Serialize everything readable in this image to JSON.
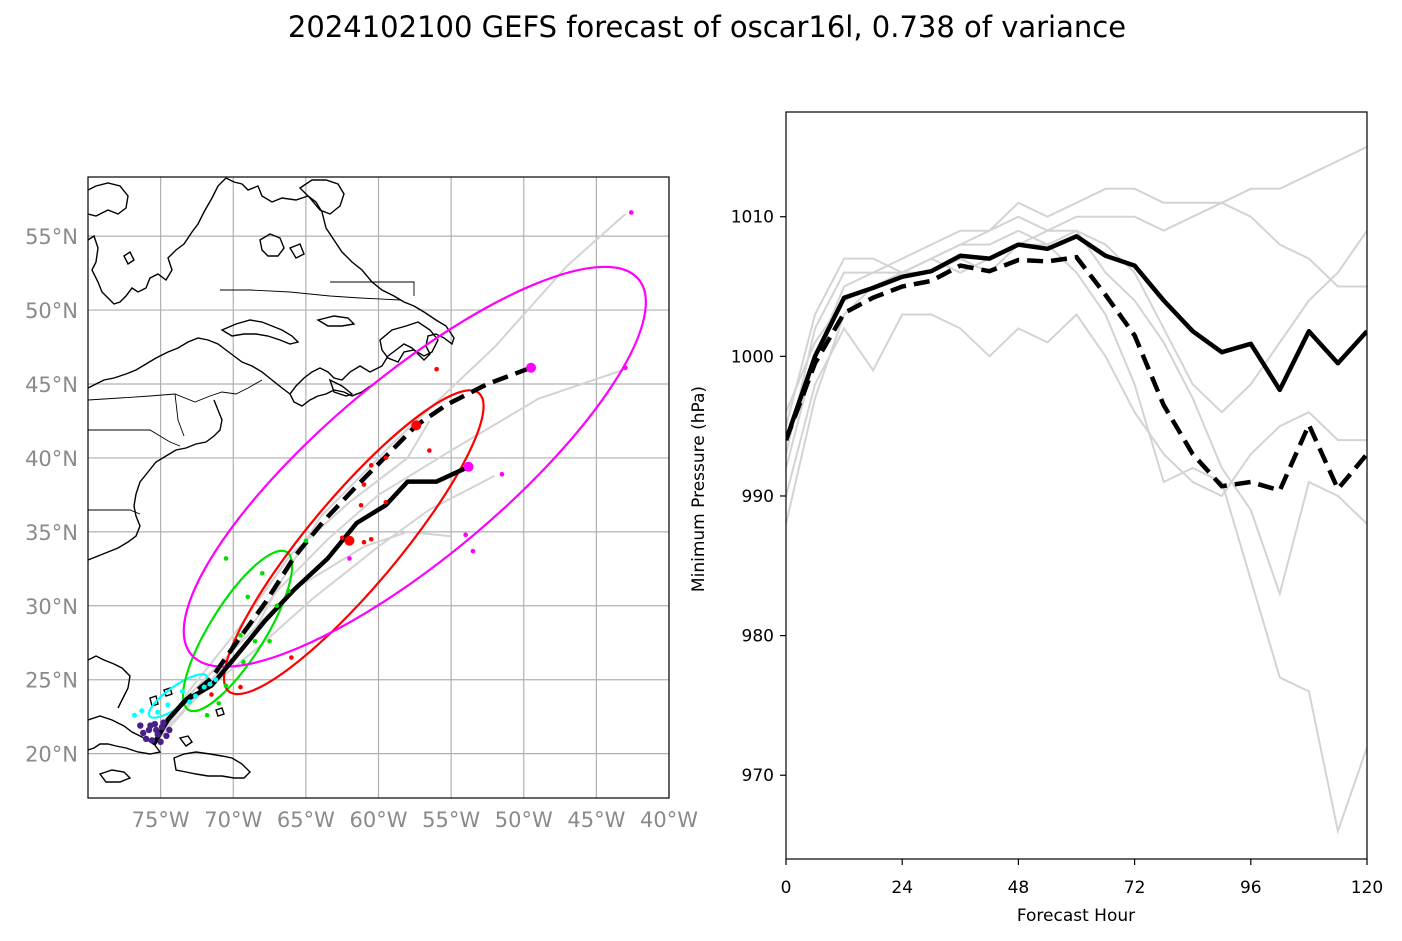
{
  "figure": {
    "title": "2024102100 GEFS forecast of oscar16l, 0.738 of variance"
  },
  "colors": {
    "member": "#d3d3d3",
    "mean": "#000000",
    "control": "#000000",
    "day1": "#00ffff",
    "day2": "#00e000",
    "day3": "#ff0000",
    "day5": "#ff00ff",
    "initial": "#4b1f8a"
  },
  "chart_data": [
    {
      "type": "scatter",
      "panel": "map",
      "xlim": [
        -80,
        -40
      ],
      "ylim": [
        17,
        59
      ],
      "x_ticks": [
        -75,
        -70,
        -65,
        -60,
        -55,
        -50,
        -45,
        -40
      ],
      "x_tick_labels": [
        "75°W",
        "70°W",
        "65°W",
        "60°W",
        "55°W",
        "50°W",
        "45°W",
        "40°W"
      ],
      "y_ticks": [
        20,
        25,
        30,
        35,
        40,
        45,
        50,
        55
      ],
      "y_tick_labels": [
        "20°N",
        "25°N",
        "30°N",
        "35°N",
        "40°N",
        "45°N",
        "50°N",
        "55°N"
      ],
      "grid": true,
      "series": [
        {
          "style": "solid",
          "color": "black",
          "points": [
            [
              -75.5,
              20.6
            ],
            [
              -74.5,
              22.3
            ],
            [
              -73.3,
              23.6
            ],
            [
              -71.5,
              24.6
            ],
            [
              -69.8,
              26.6
            ],
            [
              -67.8,
              29.0
            ],
            [
              -65.8,
              31.1
            ],
            [
              -63.5,
              33.2
            ],
            [
              -61.5,
              35.6
            ],
            [
              -59.5,
              36.8
            ],
            [
              -58.0,
              38.4
            ],
            [
              -56.0,
              38.4
            ],
            [
              -53.8,
              39.4
            ]
          ]
        },
        {
          "style": "dashed",
          "color": "black",
          "points": [
            [
              -75.5,
              20.6
            ],
            [
              -74.5,
              22.3
            ],
            [
              -73.3,
              23.6
            ],
            [
              -71.5,
              25.1
            ],
            [
              -69.8,
              27.5
            ],
            [
              -67.8,
              30.2
            ],
            [
              -65.8,
              33.3
            ],
            [
              -63.8,
              35.7
            ],
            [
              -61.5,
              38.1
            ],
            [
              -59.5,
              40.1
            ],
            [
              -57.4,
              42.2
            ],
            [
              -55.3,
              43.6
            ],
            [
              -52.5,
              45.0
            ],
            [
              -49.5,
              46.1
            ]
          ]
        },
        {
          "style": "member",
          "color": "lightgray",
          "points": [
            [
              -75.5,
              20.6
            ],
            [
              -72.8,
              24.2
            ],
            [
              -70.0,
              27.0
            ],
            [
              -67.0,
              31.0
            ],
            [
              -63.5,
              34.5
            ],
            [
              -60.0,
              37.5
            ],
            [
              -55.0,
              40.5
            ],
            [
              -49.0,
              44.0
            ],
            [
              -43.0,
              46.0
            ]
          ]
        },
        {
          "style": "member",
          "color": "lightgray",
          "points": [
            [
              -75.5,
              20.6
            ],
            [
              -72.5,
              24.0
            ],
            [
              -69.0,
              27.5
            ],
            [
              -66.5,
              32.0
            ],
            [
              -64.0,
              36.0
            ],
            [
              -59.0,
              41.0
            ],
            [
              -52.0,
              47.5
            ],
            [
              -47.0,
              53.0
            ],
            [
              -43.0,
              56.5
            ]
          ]
        },
        {
          "style": "member",
          "color": "lightgray",
          "points": [
            [
              -75.5,
              20.6
            ],
            [
              -73.0,
              24.0
            ],
            [
              -69.5,
              27.5
            ],
            [
              -66.0,
              31.0
            ],
            [
              -61.0,
              34.0
            ],
            [
              -58.0,
              35.0
            ],
            [
              -55.0,
              34.7
            ]
          ]
        },
        {
          "style": "member",
          "color": "lightgray",
          "points": [
            [
              -75.5,
              20.6
            ],
            [
              -72.5,
              23.8
            ],
            [
              -68.5,
              27.0
            ],
            [
              -64.5,
              30.5
            ],
            [
              -60.0,
              34.0
            ],
            [
              -56.5,
              36.5
            ],
            [
              -52.0,
              38.8
            ]
          ]
        },
        {
          "style": "member",
          "color": "lightgray",
          "points": [
            [
              -75.5,
              20.6
            ],
            [
              -73.0,
              24.3
            ],
            [
              -70.0,
              28.0
            ],
            [
              -66.0,
              33.5
            ],
            [
              -62.0,
              37.0
            ],
            [
              -58.0,
              40.0
            ],
            [
              -56.5,
              42.5
            ]
          ]
        }
      ],
      "ellipses": [
        {
          "day": 1,
          "color": "cyan",
          "center": [
            -73.8,
            23.9
          ],
          "semi_major_deg": 2.4,
          "semi_minor_deg": 0.7,
          "angle_deg": 35
        },
        {
          "day": 2,
          "color": "lime",
          "center": [
            -69.7,
            28.3
          ],
          "semi_major_deg": 6.4,
          "semi_minor_deg": 1.9,
          "angle_deg": 58
        },
        {
          "day": 3,
          "color": "red",
          "center": [
            -61.7,
            34.3
          ],
          "semi_major_deg": 13.4,
          "semi_minor_deg": 3.1,
          "angle_deg": 50
        },
        {
          "day": 5,
          "color": "magenta",
          "center": [
            -57.5,
            39.4
          ],
          "semi_major_deg": 20.1,
          "semi_minor_deg": 6.2,
          "angle_deg": 40
        }
      ],
      "day_positions": {
        "initial_purple": [
          [
            -76.0,
            21.0
          ],
          [
            -75.6,
            20.9
          ],
          [
            -75.2,
            21.3
          ],
          [
            -75.8,
            21.6
          ],
          [
            -74.9,
            21.8
          ],
          [
            -75.4,
            22.0
          ],
          [
            -74.6,
            21.2
          ],
          [
            -76.2,
            21.4
          ],
          [
            -75.0,
            20.8
          ],
          [
            -74.4,
            21.6
          ],
          [
            -75.7,
            21.9
          ],
          [
            -76.4,
            21.9
          ],
          [
            -74.8,
            22.1
          ],
          [
            -75.3,
            21.6
          ]
        ],
        "cyan": [
          [
            -73.0,
            23.5
          ],
          [
            -72.0,
            24.5
          ],
          [
            -74.5,
            23.3
          ],
          [
            -71.2,
            25.0
          ],
          [
            -75.2,
            22.8
          ],
          [
            -73.5,
            24.2
          ],
          [
            -72.6,
            23.9
          ],
          [
            -71.6,
            24.7
          ],
          [
            -76.8,
            22.6
          ],
          [
            -76.3,
            22.9
          ]
        ],
        "green": [
          [
            -70.5,
            33.2
          ],
          [
            -68.0,
            32.2
          ],
          [
            -66.2,
            31.0
          ],
          [
            -69.5,
            28.0
          ],
          [
            -68.5,
            27.6
          ],
          [
            -67.5,
            27.6
          ],
          [
            -69.3,
            26.2
          ],
          [
            -70.5,
            24.6
          ],
          [
            -71.0,
            23.4
          ],
          [
            -69.0,
            30.6
          ],
          [
            -67.0,
            30.0
          ],
          [
            -65.0,
            34.4
          ],
          [
            -71.8,
            22.6
          ]
        ],
        "red": [
          [
            -56.0,
            46.0
          ],
          [
            -56.5,
            40.5
          ],
          [
            -59.5,
            40.0
          ],
          [
            -60.5,
            39.5
          ],
          [
            -61.0,
            38.2
          ],
          [
            -59.5,
            37.0
          ],
          [
            -61.2,
            36.8
          ],
          [
            -60.5,
            34.5
          ],
          [
            -61.0,
            34.3
          ],
          [
            -62.5,
            34.6
          ],
          [
            -66.0,
            26.5
          ],
          [
            -69.5,
            24.5
          ],
          [
            -71.5,
            24.0
          ]
        ],
        "magenta": [
          [
            -42.6,
            56.6
          ],
          [
            -43.0,
            46.1
          ],
          [
            -54.0,
            34.8
          ],
          [
            -53.5,
            33.7
          ],
          [
            -51.5,
            38.9
          ],
          [
            -62.0,
            33.2
          ]
        ],
        "large": [
          {
            "color": "red",
            "point": [
              -57.4,
              42.2
            ]
          },
          {
            "color": "red",
            "point": [
              -62.0,
              34.4
            ]
          },
          {
            "color": "magenta",
            "point": [
              -49.5,
              46.1
            ]
          },
          {
            "color": "magenta",
            "point": [
              -53.8,
              39.4
            ]
          }
        ]
      }
    },
    {
      "type": "line",
      "panel": "pressure",
      "xlabel": "Forecast Hour",
      "ylabel": "Minimum Pressure (hPa)",
      "xlim": [
        0,
        120
      ],
      "ylim": [
        964,
        1017.5
      ],
      "x_ticks": [
        0,
        24,
        48,
        72,
        96,
        120
      ],
      "x_tick_labels": [
        "0",
        "24",
        "48",
        "72",
        "96",
        "120"
      ],
      "y_ticks": [
        970,
        980,
        990,
        1000,
        1010
      ],
      "y_tick_labels": [
        "970",
        "980",
        "990",
        "1000",
        "1010"
      ],
      "grid": false,
      "x": [
        0,
        6,
        12,
        18,
        24,
        30,
        36,
        42,
        48,
        54,
        60,
        66,
        72,
        78,
        84,
        90,
        96,
        102,
        108,
        114,
        120
      ],
      "series": [
        {
          "style": "solid",
          "color": "black",
          "values": [
            994.0,
            1000.0,
            1004.2,
            1004.9,
            1005.7,
            1006.1,
            1007.2,
            1007.0,
            1008.0,
            1007.7,
            1008.6,
            1007.2,
            1006.5,
            1004.0,
            1001.8,
            1000.3,
            1000.9,
            997.6,
            1001.8,
            999.5,
            1001.8
          ]
        },
        {
          "style": "dashed",
          "color": "black",
          "values": [
            994.0,
            999.5,
            1003.1,
            1004.2,
            1005.0,
            1005.4,
            1006.5,
            1006.1,
            1006.9,
            1006.8,
            1007.1,
            1004.4,
            1001.5,
            996.5,
            993.0,
            990.7,
            991.0,
            990.4,
            995.1,
            990.5,
            993.0
          ]
        },
        {
          "style": "member",
          "color": "lightgray",
          "values": [
            988,
            997,
            1003,
            1005,
            1006,
            1007,
            1008,
            1009,
            1010,
            1009,
            1010,
            1010,
            1010,
            1009,
            1010,
            1011,
            1012,
            1012,
            1013,
            1014,
            1015
          ]
        },
        {
          "style": "member",
          "color": "lightgray",
          "values": [
            992,
            1000,
            1005,
            1006,
            1006,
            1007,
            1008,
            1008,
            1009,
            1008,
            1009,
            1008,
            1006,
            1002,
            998,
            996,
            998,
            1001,
            1004,
            1006,
            1009
          ]
        },
        {
          "style": "member",
          "color": "lightgray",
          "values": [
            995,
            1003,
            1007,
            1007,
            1006,
            1007,
            1006,
            1007,
            1008,
            1008,
            1006,
            1003,
            998,
            991,
            992,
            991,
            984,
            977,
            976,
            966,
            972
          ]
        },
        {
          "style": "member",
          "color": "lightgray",
          "values": [
            990,
            998,
            1002,
            999,
            1003,
            1003,
            1002,
            1000,
            1002,
            1001,
            1003,
            1000,
            996,
            993,
            991,
            990,
            993,
            995,
            996,
            994,
            994
          ]
        },
        {
          "style": "member",
          "color": "lightgray",
          "values": [
            996,
            1001,
            1004,
            1005,
            1006,
            1006,
            1007,
            1006,
            1008,
            1009,
            1009,
            1006,
            1004,
            1001,
            997,
            992,
            989,
            983,
            991,
            990,
            988
          ]
        },
        {
          "style": "member",
          "color": "lightgray",
          "values": [
            993,
            1002,
            1006,
            1006,
            1007,
            1008,
            1009,
            1009,
            1011,
            1010,
            1011,
            1012,
            1012,
            1011,
            1011,
            1011,
            1010,
            1008,
            1007,
            1005,
            1005
          ]
        }
      ]
    }
  ]
}
